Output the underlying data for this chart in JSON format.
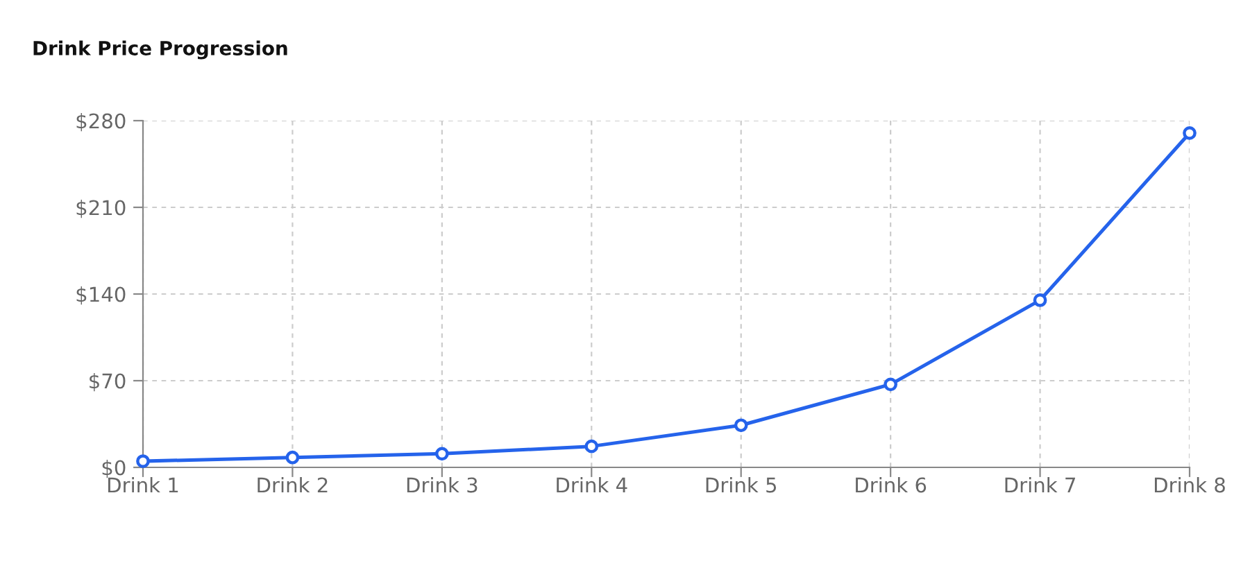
{
  "chart_data": {
    "type": "line",
    "title": "Drink Price Progression",
    "categories": [
      "Drink 1",
      "Drink 2",
      "Drink 3",
      "Drink 4",
      "Drink 5",
      "Drink 6",
      "Drink 7",
      "Drink 8"
    ],
    "series": [
      {
        "color": "#2563eb",
        "values": [
          5,
          8,
          11,
          17,
          34,
          67,
          135,
          270
        ]
      }
    ],
    "ylim": [
      0,
      280
    ],
    "yticks": [
      {
        "value": 0,
        "label": "$0"
      },
      {
        "value": 70,
        "label": "$70"
      },
      {
        "value": 140,
        "label": "$140"
      },
      {
        "value": 210,
        "label": "$210"
      },
      {
        "value": 280,
        "label": "$280"
      }
    ],
    "grid": true,
    "marker": "circle",
    "line_style": "solid"
  }
}
